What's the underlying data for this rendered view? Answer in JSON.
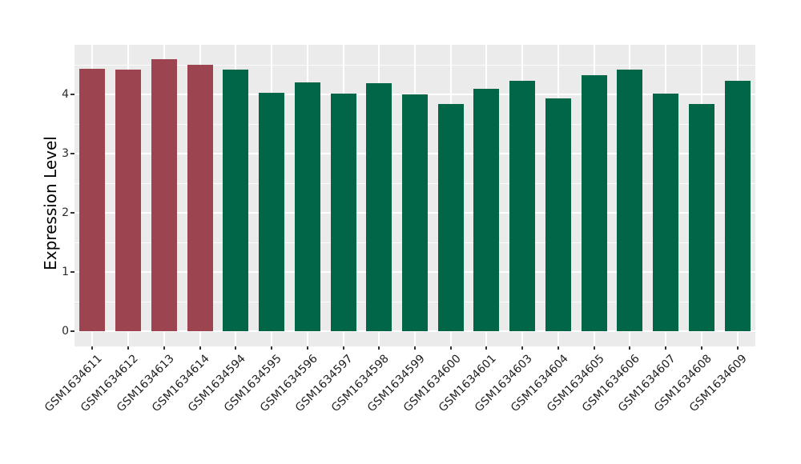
{
  "chart_data": {
    "type": "bar",
    "title": "",
    "xlabel": "",
    "ylabel": "Expression Level",
    "ylim": [
      0,
      4.84
    ],
    "yticks": [
      0,
      1,
      2,
      3,
      4
    ],
    "yticks_minor": [
      0.5,
      1.5,
      2.5,
      3.5,
      4.5
    ],
    "grid": "white major and minor gridlines on grey panel (ggplot style)",
    "legend_position": "none",
    "categories": [
      "GSM1634611",
      "GSM1634612",
      "GSM1634613",
      "GSM1634614",
      "GSM1634594",
      "GSM1634595",
      "GSM1634596",
      "GSM1634597",
      "GSM1634598",
      "GSM1634599",
      "GSM1634600",
      "GSM1634601",
      "GSM1634603",
      "GSM1634604",
      "GSM1634605",
      "GSM1634606",
      "GSM1634607",
      "GSM1634608",
      "GSM1634609"
    ],
    "values": [
      4.43,
      4.42,
      4.59,
      4.5,
      4.42,
      4.03,
      4.2,
      4.01,
      4.19,
      4.0,
      3.84,
      4.09,
      4.23,
      3.93,
      4.32,
      4.42,
      4.01,
      3.84,
      4.23
    ],
    "groups": [
      "A",
      "A",
      "A",
      "A",
      "B",
      "B",
      "B",
      "B",
      "B",
      "B",
      "B",
      "B",
      "B",
      "B",
      "B",
      "B",
      "B",
      "B",
      "B"
    ],
    "group_colors": {
      "A": "#9C4551",
      "B": "#006647"
    }
  },
  "style": {
    "panel_bg": "#EBEBEB",
    "grid_color": "#FFFFFF",
    "tick_color": "#333333",
    "axis_text_color": "#1F1F1F",
    "axis_title_color": "#000000",
    "outer_bg": "#FFFFFF"
  }
}
